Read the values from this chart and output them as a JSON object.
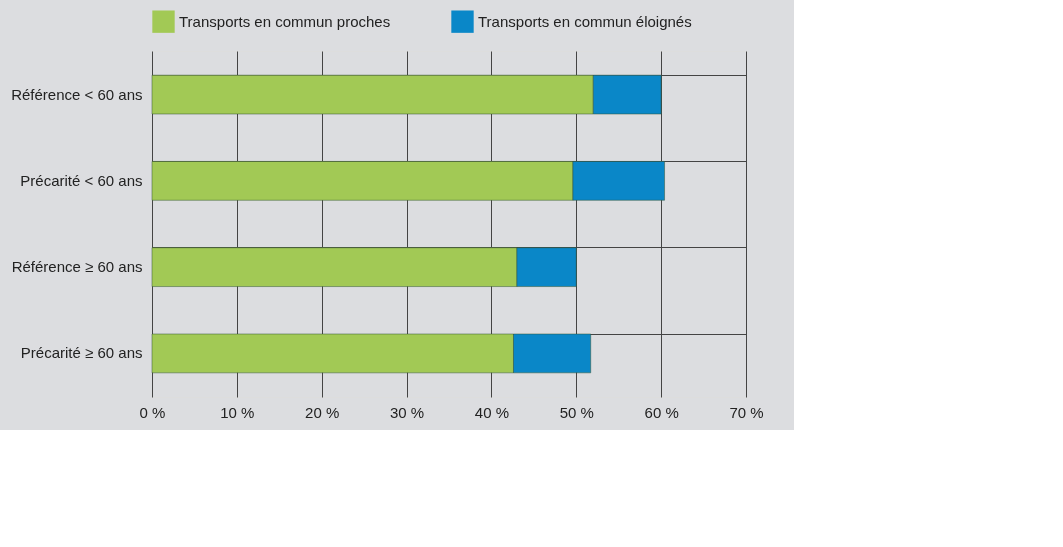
{
  "chart_data": {
    "type": "bar",
    "orientation": "horizontal",
    "stacked": true,
    "categories": [
      "Référence < 60 ans",
      "Précarité < 60 ans",
      "Référence ≥ 60 ans",
      "Précarité ≥ 60 ans"
    ],
    "series": [
      {
        "name": "Transports en commun proches",
        "color": "#a2c955",
        "values": [
          52.0,
          49.6,
          43.0,
          42.6
        ]
      },
      {
        "name": "Transports en commun éloignés",
        "color": "#0a87c8",
        "values": [
          8.0,
          10.8,
          7.0,
          9.1
        ]
      }
    ],
    "xlim": [
      0,
      70
    ],
    "xticks": [
      {
        "value": 0,
        "label": "0 %"
      },
      {
        "value": 10,
        "label": "10 %"
      },
      {
        "value": 20,
        "label": "20 %"
      },
      {
        "value": 30,
        "label": "30 %"
      },
      {
        "value": 40,
        "label": "40 %"
      },
      {
        "value": 50,
        "label": "50 %"
      },
      {
        "value": 60,
        "label": "60 %"
      },
      {
        "value": 70,
        "label": "70 %"
      }
    ],
    "grid": true,
    "legend": "top"
  }
}
